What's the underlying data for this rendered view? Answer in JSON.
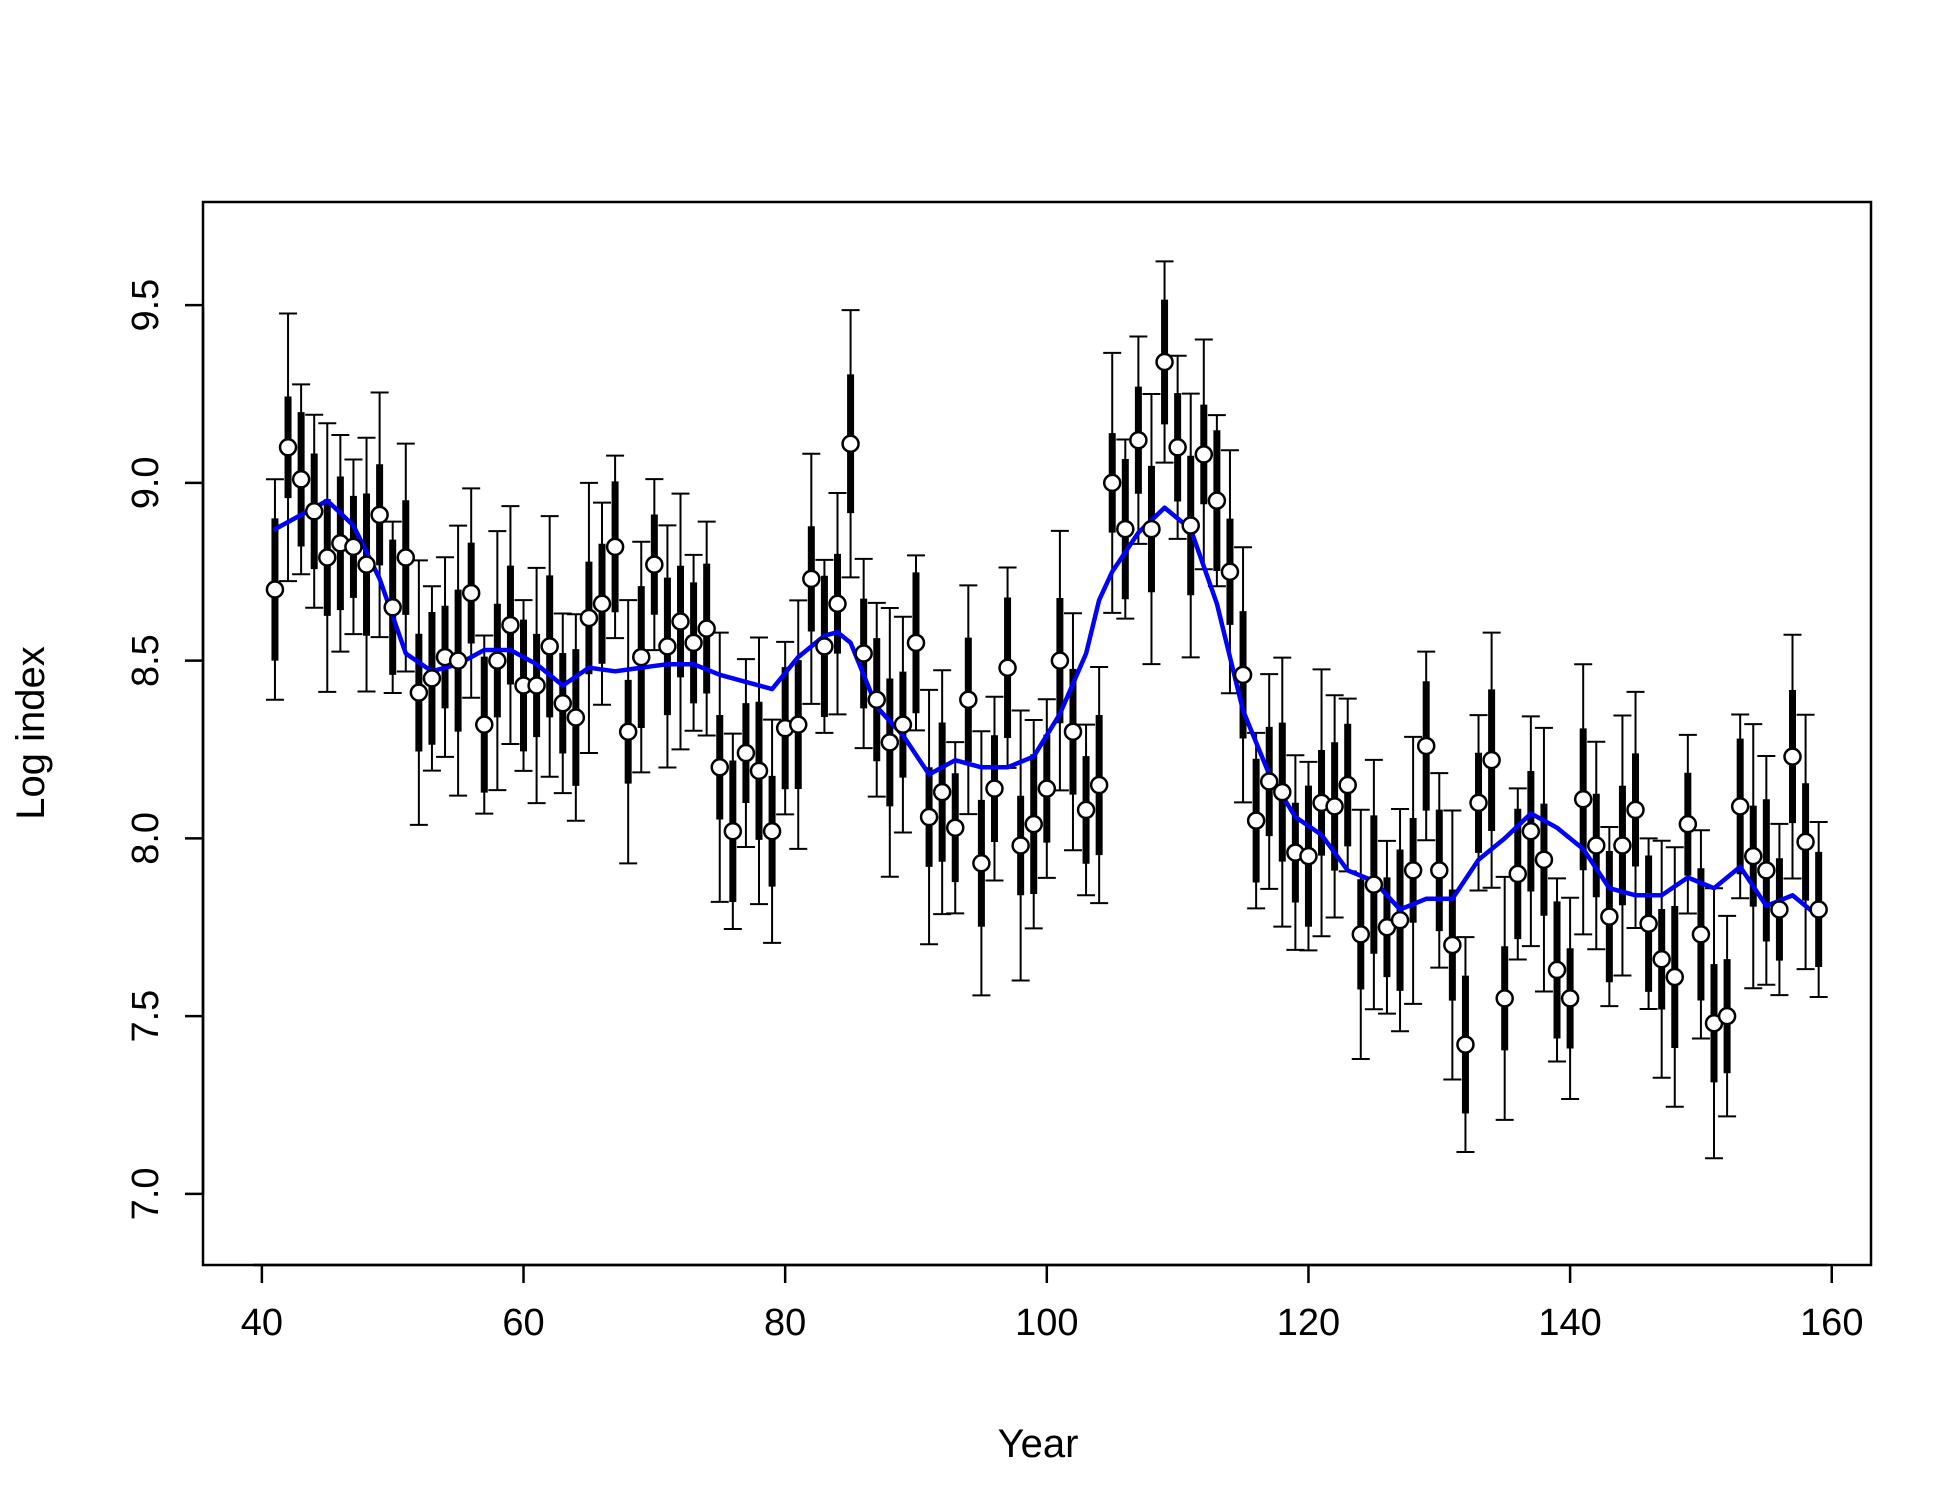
{
  "chart_data": {
    "type": "line",
    "title": "",
    "xlabel": "Year",
    "ylabel": "Log index",
    "xlim": [
      35.5,
      163
    ],
    "ylim": [
      6.8,
      9.79
    ],
    "x_ticks": [
      40,
      60,
      80,
      100,
      120,
      140,
      160
    ],
    "y_ticks": [
      7.0,
      7.5,
      8.0,
      8.5,
      9.0,
      9.5
    ],
    "x_tick_labels": [
      "40",
      "60",
      "80",
      "100",
      "120",
      "140",
      "160"
    ],
    "y_tick_labels": [
      "7.0",
      "7.5",
      "8.0",
      "8.5",
      "9.0",
      "9.5"
    ],
    "grid": false,
    "legend": "none",
    "colors": {
      "points": "#000000",
      "point_fill": "#ffffff",
      "smooth_line": "#0000ff"
    },
    "series": [
      {
        "kind": "points_with_intervals",
        "x": [
          41,
          42,
          43,
          44,
          45,
          46,
          47,
          48,
          49,
          50,
          51,
          52,
          53,
          54,
          55,
          56,
          57,
          58,
          59,
          60,
          61,
          62,
          63,
          64,
          65,
          66,
          67,
          68,
          69,
          70,
          71,
          72,
          73,
          74,
          75,
          76,
          77,
          78,
          79,
          80,
          81,
          82,
          83,
          84,
          85,
          86,
          87,
          88,
          89,
          90,
          91,
          92,
          93,
          94,
          95,
          96,
          97,
          98,
          99,
          100,
          101,
          102,
          103,
          104,
          105,
          106,
          107,
          108,
          109,
          110,
          111,
          112,
          113,
          114,
          115,
          116,
          117,
          118,
          119,
          120,
          121,
          122,
          123,
          124,
          125,
          126,
          127,
          128,
          129,
          130,
          131,
          132,
          133,
          134,
          135,
          136,
          137,
          138,
          139,
          140,
          141,
          142,
          143,
          144,
          145,
          146,
          147,
          148,
          149,
          150,
          151,
          152,
          153,
          154,
          155,
          156,
          157,
          158,
          159
        ],
        "y": [
          8.7,
          9.1,
          9.01,
          8.92,
          8.79,
          8.83,
          8.82,
          8.77,
          8.91,
          8.65,
          8.79,
          8.41,
          8.45,
          8.51,
          8.5,
          8.69,
          8.32,
          8.5,
          8.6,
          8.43,
          8.43,
          8.54,
          8.38,
          8.34,
          8.62,
          8.66,
          8.82,
          8.3,
          8.51,
          8.77,
          8.54,
          8.61,
          8.55,
          8.59,
          8.2,
          8.02,
          8.24,
          8.19,
          8.02,
          8.31,
          8.32,
          8.73,
          8.54,
          8.66,
          9.11,
          8.52,
          8.39,
          8.27,
          8.32,
          8.55,
          8.06,
          8.13,
          8.03,
          8.39,
          7.93,
          8.14,
          8.48,
          7.98,
          8.04,
          8.14,
          8.5,
          8.3,
          8.08,
          8.15,
          9.0,
          8.87,
          9.12,
          8.87,
          9.34,
          9.1,
          8.88,
          9.08,
          8.95,
          8.75,
          8.46,
          8.05,
          8.16,
          8.13,
          7.96,
          7.95,
          8.1,
          8.09,
          8.15,
          7.73,
          7.87,
          7.75,
          7.77,
          7.91,
          8.26,
          7.91,
          7.7,
          7.42,
          8.1,
          8.22,
          7.55,
          7.9,
          8.02,
          7.94,
          7.63,
          7.55,
          8.11,
          7.98,
          7.78,
          7.98,
          8.08,
          7.76,
          7.66,
          7.61,
          8.04,
          7.73,
          7.48,
          7.5,
          8.09,
          7.95,
          7.91,
          7.8,
          8.23,
          7.99,
          7.8
        ]
      },
      {
        "kind": "smooth",
        "x": [
          41,
          43,
          45,
          47,
          49,
          51,
          53,
          55,
          57,
          59,
          61,
          63,
          65,
          67,
          69,
          71,
          73,
          75,
          77,
          79,
          81,
          83,
          84,
          85,
          87,
          89,
          91,
          93,
          95,
          97,
          99,
          101,
          103,
          104,
          105,
          107,
          109,
          111,
          113,
          115,
          117,
          119,
          121,
          123,
          125,
          127,
          129,
          131,
          133,
          135,
          137,
          139,
          141,
          143,
          145,
          147,
          149,
          151,
          153,
          155,
          157,
          159
        ],
        "y": [
          8.87,
          8.91,
          8.95,
          8.88,
          8.73,
          8.52,
          8.47,
          8.49,
          8.53,
          8.53,
          8.49,
          8.43,
          8.48,
          8.47,
          8.48,
          8.49,
          8.49,
          8.46,
          8.44,
          8.42,
          8.51,
          8.57,
          8.58,
          8.55,
          8.37,
          8.29,
          8.18,
          8.22,
          8.2,
          8.2,
          8.23,
          8.35,
          8.52,
          8.67,
          8.75,
          8.86,
          8.93,
          8.87,
          8.66,
          8.36,
          8.18,
          8.06,
          8.01,
          7.91,
          7.88,
          7.8,
          7.83,
          7.83,
          7.94,
          8.0,
          8.07,
          8.03,
          7.97,
          7.86,
          7.84,
          7.84,
          7.89,
          7.86,
          7.92,
          7.81,
          7.84,
          7.78
        ]
      }
    ]
  }
}
